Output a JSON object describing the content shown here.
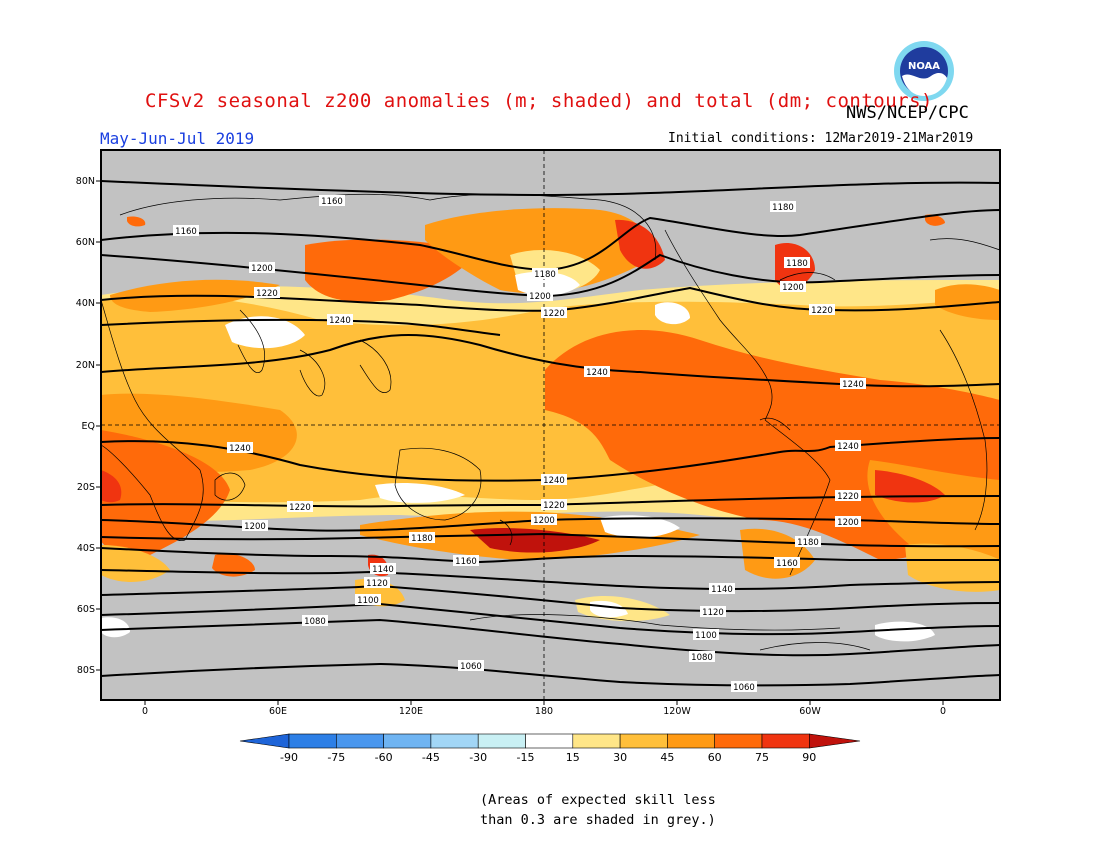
{
  "header": {
    "title": "CFSv2 seasonal z200 anomalies (m; shaded) and total (dm; contours)",
    "agency": "NWS/NCEP/CPC",
    "season": "May-Jun-Jul 2019",
    "initial_conditions": "Initial conditions: 12Mar2019-21Mar2019",
    "logo_text": "NOAA"
  },
  "map": {
    "projection": "cylindrical equidistant",
    "lat_labels": [
      "80N",
      "60N",
      "40N",
      "20N",
      "EQ",
      "20S",
      "40S",
      "60S",
      "80S"
    ],
    "lon_labels": [
      "0",
      "60E",
      "120E",
      "180",
      "120W",
      "60W",
      "0"
    ],
    "contour_labels": [
      {
        "value": "1160"
      },
      {
        "value": "1180"
      },
      {
        "value": "1160"
      },
      {
        "value": "1200"
      },
      {
        "value": "1180"
      },
      {
        "value": "1180"
      },
      {
        "value": "1220"
      },
      {
        "value": "1200"
      },
      {
        "value": "1200"
      },
      {
        "value": "1240"
      },
      {
        "value": "1220"
      },
      {
        "value": "1220"
      },
      {
        "value": "1240"
      },
      {
        "value": "1240"
      },
      {
        "value": "1240"
      },
      {
        "value": "1240"
      },
      {
        "value": "1240"
      },
      {
        "value": "1220"
      },
      {
        "value": "1220"
      },
      {
        "value": "1220"
      },
      {
        "value": "1200"
      },
      {
        "value": "1200"
      },
      {
        "value": "1200"
      },
      {
        "value": "1180"
      },
      {
        "value": "1180"
      },
      {
        "value": "1160"
      },
      {
        "value": "1160"
      },
      {
        "value": "1140"
      },
      {
        "value": "1140"
      },
      {
        "value": "1120"
      },
      {
        "value": "1120"
      },
      {
        "value": "1100"
      },
      {
        "value": "1100"
      },
      {
        "value": "1080"
      },
      {
        "value": "1080"
      },
      {
        "value": "1060"
      },
      {
        "value": "1060"
      }
    ]
  },
  "colorbar": {
    "labels": [
      "-90",
      "-75",
      "-60",
      "-45",
      "-30",
      "-15",
      "15",
      "30",
      "45",
      "60",
      "75",
      "90"
    ],
    "colors": [
      "#1e64d8",
      "#2d7fe6",
      "#4a97ee",
      "#6fb4f2",
      "#a2d6f6",
      "#c9f0f4",
      "#ffffff",
      "#ffe688",
      "#ffbf3a",
      "#ff9a14",
      "#ff6a0a",
      "#f03410",
      "#c0120c"
    ]
  },
  "note": {
    "line1": "(Areas of expected skill less",
    "line2": "than 0.3 are shaded in grey.)"
  }
}
